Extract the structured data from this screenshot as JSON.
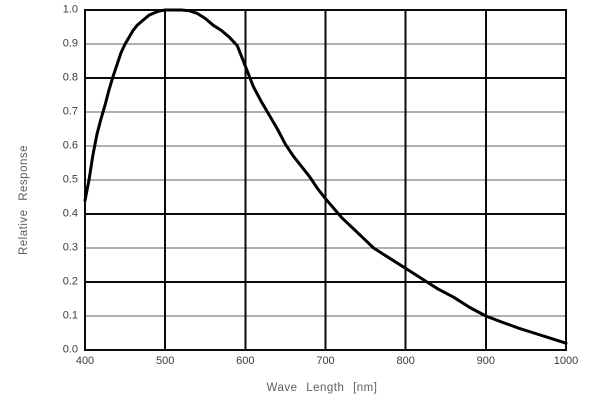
{
  "figure": {
    "kind": "spectral-response-plot"
  },
  "colors": {
    "background": "#ffffff",
    "curve": "#000000",
    "grid_heavy": "#0a0a0a",
    "grid_light": "#5f5f5f",
    "border": "#0a0a0a",
    "tick_label": "#3c3c3c",
    "axis_title": "#5d5d5d"
  },
  "chart_data": {
    "type": "line",
    "title": "",
    "xlabel": "Wave Length [nm]",
    "ylabel": "Relative Response",
    "xlim": [
      400,
      1000
    ],
    "ylim": [
      0.0,
      1.0
    ],
    "grid": true,
    "legend_position": "none",
    "x_ticks": [
      400,
      500,
      600,
      700,
      800,
      900,
      1000
    ],
    "x_tick_labels": [
      "400",
      "500",
      "600",
      "700",
      "800",
      "900",
      "1000"
    ],
    "y_ticks": [
      0.0,
      0.1,
      0.2,
      0.3,
      0.4,
      0.5,
      0.6,
      0.7,
      0.8,
      0.9,
      1.0
    ],
    "y_tick_labels": [
      "0.0",
      "0.1",
      "0.2",
      "0.3",
      "0.4",
      "0.5",
      "0.6",
      "0.7",
      "0.8",
      "0.9",
      "1.0"
    ],
    "heavy_y_gridlines": [
      0.0,
      0.2,
      0.4,
      0.8,
      1.0
    ],
    "series": [
      {
        "name": "relative-response",
        "x": [
          400,
          405,
          410,
          415,
          420,
          425,
          430,
          435,
          440,
          445,
          450,
          455,
          460,
          465,
          470,
          475,
          480,
          485,
          490,
          495,
          500,
          510,
          520,
          530,
          540,
          550,
          560,
          570,
          580,
          590,
          600,
          610,
          620,
          630,
          640,
          650,
          660,
          670,
          680,
          690,
          700,
          720,
          740,
          760,
          780,
          800,
          820,
          840,
          860,
          880,
          900,
          920,
          940,
          960,
          980,
          1000
        ],
        "y": [
          0.44,
          0.5,
          0.575,
          0.635,
          0.68,
          0.72,
          0.765,
          0.805,
          0.84,
          0.875,
          0.9,
          0.92,
          0.94,
          0.955,
          0.965,
          0.975,
          0.985,
          0.99,
          0.995,
          0.998,
          1.0,
          1.0,
          1.0,
          0.998,
          0.99,
          0.975,
          0.955,
          0.94,
          0.92,
          0.895,
          0.835,
          0.775,
          0.73,
          0.69,
          0.65,
          0.605,
          0.57,
          0.54,
          0.51,
          0.475,
          0.445,
          0.39,
          0.345,
          0.3,
          0.27,
          0.24,
          0.21,
          0.18,
          0.155,
          0.125,
          0.1,
          0.082,
          0.065,
          0.05,
          0.035,
          0.02
        ]
      }
    ]
  }
}
